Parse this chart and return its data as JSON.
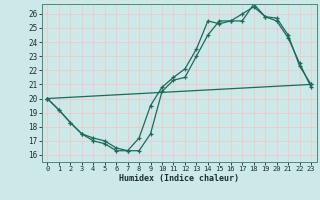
{
  "xlabel": "Humidex (Indice chaleur)",
  "bg_color": "#cde8e8",
  "grid_color": "#f0c8c8",
  "line_color": "#1a6b5a",
  "xlim": [
    -0.5,
    23.5
  ],
  "ylim": [
    15.5,
    26.7
  ],
  "xticks": [
    0,
    1,
    2,
    3,
    4,
    5,
    6,
    7,
    8,
    9,
    10,
    11,
    12,
    13,
    14,
    15,
    16,
    17,
    18,
    19,
    20,
    21,
    22,
    23
  ],
  "yticks": [
    16,
    17,
    18,
    19,
    20,
    21,
    22,
    23,
    24,
    25,
    26
  ],
  "line1_x": [
    0,
    1,
    2,
    3,
    4,
    5,
    6,
    7,
    8,
    9,
    10,
    11,
    12,
    13,
    14,
    15,
    16,
    17,
    18,
    19,
    20,
    21,
    22,
    23
  ],
  "line1_y": [
    20.0,
    19.2,
    18.3,
    17.5,
    17.0,
    16.8,
    16.3,
    16.3,
    17.2,
    19.5,
    20.8,
    21.5,
    22.1,
    23.5,
    25.5,
    25.3,
    25.5,
    25.5,
    26.7,
    25.8,
    25.5,
    24.3,
    22.5,
    20.8
  ],
  "line2_x": [
    0,
    1,
    2,
    3,
    4,
    5,
    6,
    7,
    8,
    9,
    10,
    11,
    12,
    13,
    14,
    15,
    16,
    17,
    18,
    19,
    20,
    21,
    22,
    23
  ],
  "line2_y": [
    20.0,
    19.2,
    18.3,
    17.5,
    17.2,
    17.0,
    16.5,
    16.3,
    16.3,
    17.5,
    20.5,
    21.3,
    21.5,
    23.0,
    24.5,
    25.5,
    25.5,
    26.0,
    26.5,
    25.8,
    25.7,
    24.5,
    22.3,
    21.0
  ],
  "line3_x": [
    0,
    23
  ],
  "line3_y": [
    20.0,
    21.0
  ]
}
